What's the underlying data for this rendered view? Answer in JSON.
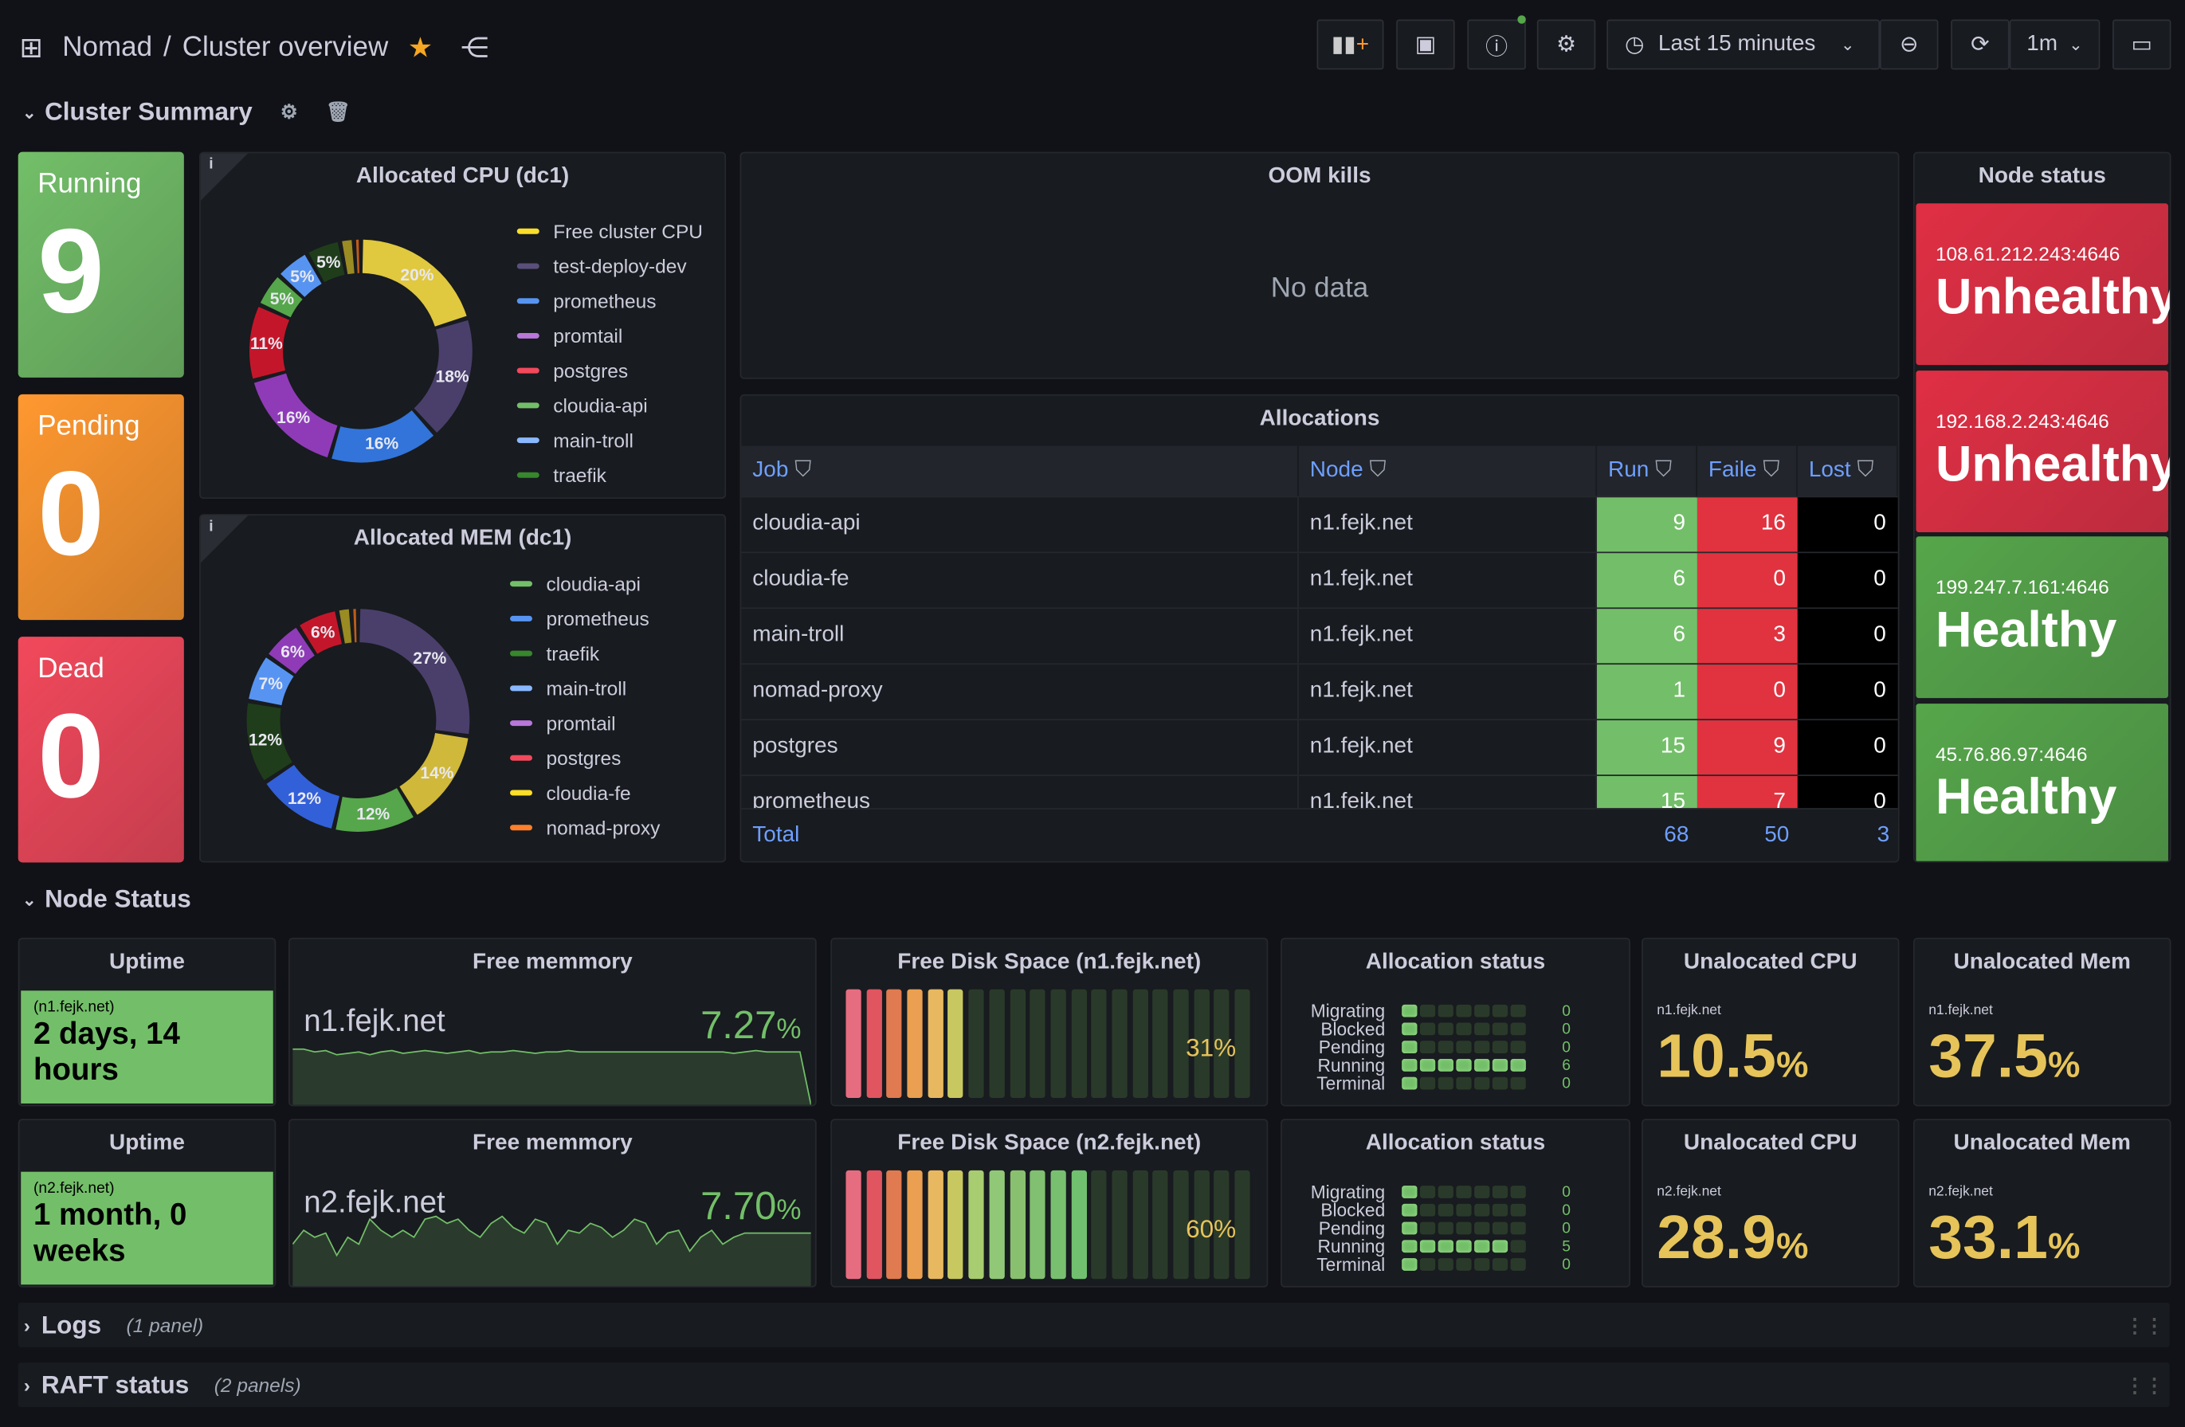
{
  "header": {
    "breadcrumb_root": "Nomad",
    "breadcrumb_sep": "/",
    "title": "Cluster overview",
    "time_range": "Last 15 minutes",
    "refresh": "1m"
  },
  "rows": {
    "cluster_summary": "Cluster Summary",
    "node_status": "Node Status",
    "logs": "Logs",
    "logs_count": "(1 panel)",
    "raft": "RAFT status",
    "raft_count": "(2 panels)"
  },
  "stats": [
    {
      "label": "Running",
      "value": "9",
      "color": "#73bf69"
    },
    {
      "label": "Pending",
      "value": "0",
      "color": "#ff9830"
    },
    {
      "label": "Dead",
      "value": "0",
      "color": "#f2495c"
    }
  ],
  "cpu": {
    "title": "Allocated CPU (dc1)",
    "segments": [
      {
        "name": "Free cluster CPU",
        "pct": 20,
        "color": "#e0c83f"
      },
      {
        "name": "test-deploy-dev",
        "pct": 18,
        "color": "#4a3f6b"
      },
      {
        "name": "prometheus",
        "pct": 16,
        "color": "#3274d9"
      },
      {
        "name": "promtail",
        "pct": 16,
        "color": "#8f3bb8"
      },
      {
        "name": "postgres",
        "pct": 11,
        "color": "#c4162a"
      },
      {
        "name": "cloudia-api",
        "pct": 5,
        "color": "#56a64b"
      },
      {
        "name": "main-troll",
        "pct": 5,
        "color": "#5794f2"
      },
      {
        "name": "traefik",
        "pct": 5,
        "color": "#1f3d1a"
      },
      {
        "name": "",
        "pct": 2,
        "color": "#9a8b22"
      },
      {
        "name": "",
        "pct": 1,
        "color": "#c15c17"
      }
    ],
    "legend": [
      "Free cluster CPU",
      "test-deploy-dev",
      "prometheus",
      "promtail",
      "postgres",
      "cloudia-api",
      "main-troll",
      "traefik"
    ],
    "legend_colors": [
      "#fade2a",
      "#5a4f7b",
      "#5794f2",
      "#b877d9",
      "#f2495c",
      "#73bf69",
      "#8ab8ff",
      "#37872d"
    ]
  },
  "mem": {
    "title": "Allocated MEM (dc1)",
    "segments": [
      {
        "pct": 27,
        "color": "#4a3f6b"
      },
      {
        "pct": 14,
        "color": "#d0b83a"
      },
      {
        "pct": 12,
        "color": "#56a64b"
      },
      {
        "pct": 12,
        "color": "#3260d9"
      },
      {
        "pct": 12,
        "color": "#1f3d1a"
      },
      {
        "pct": 7,
        "color": "#5794f2"
      },
      {
        "pct": 6,
        "color": "#8f3bb8"
      },
      {
        "pct": 6,
        "color": "#c4162a"
      },
      {
        "pct": 2,
        "color": "#9a8b22"
      },
      {
        "pct": 1,
        "color": "#c15c17"
      }
    ],
    "legend": [
      "cloudia-api",
      "prometheus",
      "traefik",
      "main-troll",
      "promtail",
      "postgres",
      "cloudia-fe",
      "nomad-proxy"
    ],
    "legend_colors": [
      "#73bf69",
      "#5794f2",
      "#37872d",
      "#8ab8ff",
      "#b877d9",
      "#f2495c",
      "#fade2a",
      "#ff7f2a"
    ]
  },
  "oom": {
    "title": "OOM kills",
    "empty": "No data"
  },
  "allocations": {
    "title": "Allocations",
    "columns": [
      "Job",
      "Node",
      "Run",
      "Faile",
      "Lost"
    ],
    "rows": [
      [
        "cloudia-api",
        "n1.fejk.net",
        "9",
        "16",
        "0"
      ],
      [
        "cloudia-fe",
        "n1.fejk.net",
        "6",
        "0",
        "0"
      ],
      [
        "main-troll",
        "n1.fejk.net",
        "6",
        "3",
        "0"
      ],
      [
        "nomad-proxy",
        "n1.fejk.net",
        "1",
        "0",
        "0"
      ],
      [
        "postgres",
        "n1.fejk.net",
        "15",
        "9",
        "0"
      ],
      [
        "prometheus",
        "n1.fejk.net",
        "15",
        "7",
        "0"
      ]
    ],
    "total": {
      "label": "Total",
      "run": "68",
      "failed": "50",
      "lost": "3"
    }
  },
  "node_status": {
    "title": "Node status",
    "nodes": [
      {
        "addr": "108.61.212.243:4646",
        "status": "Unhealthy",
        "color": "#e02f44"
      },
      {
        "addr": "192.168.2.243:4646",
        "status": "Unhealthy",
        "color": "#e02f44"
      },
      {
        "addr": "199.247.7.161:4646",
        "status": "Healthy",
        "color": "#56a64b"
      },
      {
        "addr": "45.76.86.97:4646",
        "status": "Healthy",
        "color": "#56a64b"
      }
    ]
  },
  "nodes": [
    {
      "uptime_title": "Uptime",
      "uptime_node": "(n1.fejk.net)",
      "uptime": "2 days, 14 hours",
      "mem_title": "Free memmory",
      "mem_node": "n1.fejk.net",
      "mem_value": "7.27",
      "mem_unit": "%",
      "mem_series": [
        40,
        40,
        38,
        39,
        36,
        37,
        38,
        36,
        38,
        39,
        37,
        38,
        39,
        38,
        37,
        38,
        39,
        37,
        38,
        38,
        39,
        38,
        37,
        38,
        38,
        39,
        38,
        38,
        38,
        38,
        38,
        38,
        38,
        38,
        38,
        38,
        38,
        38,
        38,
        38,
        37,
        38,
        39,
        38,
        38,
        38,
        38,
        0
      ],
      "disk_title": "Free Disk Space (n1.fejk.net)",
      "disk_pct": 31,
      "disk_label": "31%",
      "alloc_title": "Allocation status",
      "alloc": [
        [
          "Migrating",
          "0"
        ],
        [
          "Blocked",
          "0"
        ],
        [
          "Pending",
          "0"
        ],
        [
          "Running",
          "6"
        ],
        [
          "Terminal",
          "0"
        ]
      ],
      "cpu_title": "Unalocated CPU",
      "cpu_node": "n1.fejk.net",
      "cpu_value": "10.5",
      "mem2_title": "Unalocated Mem",
      "mem2_node": "n1.fejk.net",
      "mem2_value": "37.5",
      "unit": "%"
    },
    {
      "uptime_title": "Uptime",
      "uptime_node": "(n2.fejk.net)",
      "uptime": "1 month, 0 weeks",
      "mem_title": "Free memmory",
      "mem_node": "n2.fejk.net",
      "mem_value": "7.70",
      "mem_unit": "%",
      "mem_series": [
        30,
        40,
        35,
        38,
        22,
        35,
        30,
        48,
        40,
        35,
        40,
        35,
        48,
        50,
        45,
        48,
        40,
        35,
        45,
        50,
        42,
        38,
        48,
        45,
        30,
        40,
        38,
        45,
        42,
        35,
        40,
        48,
        45,
        30,
        38,
        40,
        25,
        35,
        40,
        30,
        35,
        38,
        38,
        38,
        38,
        38,
        38,
        38
      ],
      "disk_title": "Free Disk Space (n2.fejk.net)",
      "disk_pct": 60,
      "disk_label": "60%",
      "alloc_title": "Allocation status",
      "alloc": [
        [
          "Migrating",
          "0"
        ],
        [
          "Blocked",
          "0"
        ],
        [
          "Pending",
          "0"
        ],
        [
          "Running",
          "5"
        ],
        [
          "Terminal",
          "0"
        ]
      ],
      "cpu_title": "Unalocated CPU",
      "cpu_node": "n2.fejk.net",
      "cpu_value": "28.9",
      "mem2_title": "Unalocated Mem",
      "mem2_node": "n2.fejk.net",
      "mem2_value": "33.1",
      "unit": "%"
    }
  ]
}
